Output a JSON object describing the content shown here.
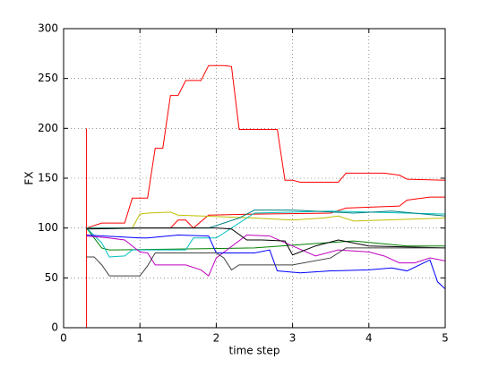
{
  "chart_data": {
    "type": "line",
    "xlabel": "time step",
    "ylabel": "FX",
    "xlim": [
      0,
      5
    ],
    "ylim": [
      0,
      300
    ],
    "xticks": [
      0,
      1,
      2,
      3,
      4,
      5
    ],
    "yticks": [
      0,
      50,
      100,
      150,
      200,
      250,
      300
    ],
    "grid": true,
    "series": [
      {
        "color": "#ff0000",
        "x": [
          0.3,
          0.3
        ],
        "values": [
          0,
          200
        ]
      },
      {
        "color": "#ff0000",
        "x": [
          0.3,
          0.5,
          0.8,
          0.9,
          1.1,
          1.2,
          1.3,
          1.4,
          1.5,
          1.6,
          1.8,
          1.9,
          2.1,
          2.2,
          2.3,
          2.8,
          2.9,
          3.0,
          3.1,
          3.6,
          3.7,
          4.2,
          4.4,
          4.5,
          5.0
        ],
        "values": [
          100,
          105,
          105,
          130,
          130,
          180,
          180,
          233,
          233,
          248,
          248,
          263,
          263,
          262,
          199,
          199,
          148,
          148,
          146,
          146,
          155,
          155,
          153,
          149,
          148
        ]
      },
      {
        "color": "#ff0000",
        "x": [
          0.3,
          1.4,
          1.5,
          1.6,
          1.7,
          1.9,
          2.5,
          3.5,
          3.7,
          4.4,
          4.5,
          4.8,
          5.0
        ],
        "values": [
          100,
          100,
          108,
          108,
          100,
          113,
          114,
          115,
          120,
          122,
          128,
          131,
          131
        ]
      },
      {
        "color": "#bfbf00",
        "x": [
          0.3,
          0.9,
          1.0,
          1.1,
          1.4,
          1.5,
          2.5,
          3.0,
          3.4,
          3.6,
          3.8,
          4.2,
          5.0
        ],
        "values": [
          100,
          100,
          114,
          115,
          116,
          113,
          110,
          108,
          110,
          112,
          107,
          108,
          110
        ]
      },
      {
        "color": "#008000",
        "x": [
          0.3,
          0.5,
          0.6,
          2.5,
          3.4,
          3.8,
          4.5,
          5.0
        ],
        "values": [
          100,
          80,
          78,
          80,
          85,
          87,
          82,
          82
        ]
      },
      {
        "color": "#00bfbf",
        "x": [
          0.3,
          0.5,
          0.6,
          0.8,
          0.9,
          1.6,
          1.7,
          2.0,
          2.5,
          3.5,
          4.0,
          5.0
        ],
        "values": [
          100,
          85,
          71,
          72,
          78,
          78,
          90,
          90,
          115,
          117,
          116,
          114
        ]
      },
      {
        "color": "#008080",
        "x": [
          0.3,
          1.9,
          2.3,
          2.5,
          3.0,
          3.8,
          4.3,
          5.0
        ],
        "values": [
          100,
          100,
          110,
          118,
          118,
          115,
          117,
          112
        ]
      },
      {
        "color": "#bf00bf",
        "x": [
          0.3,
          0.6,
          0.8,
          1.0,
          1.1,
          1.2,
          1.6,
          1.8,
          1.9,
          2.0,
          2.4,
          2.7,
          3.0,
          3.3,
          3.6,
          4.0,
          4.2,
          4.4,
          4.6,
          4.8,
          5.0
        ],
        "values": [
          92,
          90,
          88,
          76,
          75,
          63,
          63,
          58,
          52,
          70,
          93,
          92,
          82,
          72,
          78,
          76,
          72,
          65,
          65,
          70,
          67
        ]
      },
      {
        "color": "#0000ff",
        "x": [
          0.3,
          1.0,
          1.1,
          1.5,
          1.9,
          2.0,
          2.5,
          2.7,
          2.8,
          3.1,
          3.5,
          4.0,
          4.3,
          4.5,
          4.8,
          4.9,
          5.0
        ],
        "values": [
          93,
          90,
          90,
          93,
          92,
          75,
          75,
          78,
          57,
          55,
          57,
          58,
          60,
          57,
          68,
          46,
          39
        ]
      },
      {
        "color": "#000000",
        "x": [
          0.3,
          1.0,
          1.1,
          2.0,
          2.2,
          2.4,
          2.6,
          2.9,
          3.0,
          3.3,
          3.6,
          4.0,
          5.0
        ],
        "values": [
          99,
          100,
          100,
          100,
          99,
          88,
          88,
          87,
          73,
          82,
          88,
          82,
          80
        ]
      },
      {
        "color": "#404040",
        "x": [
          0.3,
          0.4,
          0.5,
          0.6,
          1.0,
          1.1,
          1.2,
          2.0,
          2.1,
          2.2,
          2.3,
          3.0,
          3.5,
          3.7,
          4.0,
          5.0
        ],
        "values": [
          71,
          71,
          63,
          52,
          52,
          62,
          75,
          75,
          70,
          58,
          63,
          63,
          70,
          80,
          80,
          80
        ]
      }
    ]
  }
}
